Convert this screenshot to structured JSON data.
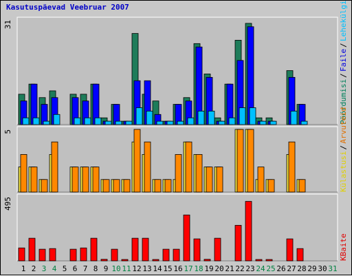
{
  "chart_data": {
    "type": "bar",
    "title": "Kasutuspäevad Veebruar 2007",
    "categories": [
      "1",
      "2",
      "3",
      "4",
      "5",
      "6",
      "7",
      "8",
      "9",
      "10",
      "11",
      "12",
      "13",
      "14",
      "15",
      "16",
      "17",
      "18",
      "19",
      "20",
      "21",
      "22",
      "23",
      "24",
      "25",
      "26",
      "27",
      "28",
      "29",
      "30",
      "31"
    ],
    "weekend_days": [
      "3",
      "4",
      "10",
      "11",
      "17",
      "18",
      "24",
      "25",
      "31"
    ],
    "panels": [
      {
        "id": "top",
        "axis_max_label": "31",
        "ymax": 31,
        "legend": [
          {
            "label": "Pöördumisi",
            "color": "#00805a"
          },
          {
            "label": "Faile",
            "color": "#0000e0"
          },
          {
            "label": "Lehekülgi",
            "color": "#00c0ff"
          }
        ],
        "series": [
          {
            "name": "Pöördumisi",
            "color": "#1e7c5a",
            "values": [
              9,
              12,
              8,
              10,
              0,
              9,
              9,
              12,
              2,
              6,
              1,
              27,
              9,
              7,
              1,
              6,
              8,
              24,
              15,
              2,
              12,
              25,
              30,
              2,
              2,
              0,
              16,
              6,
              0,
              0,
              0
            ]
          },
          {
            "name": "Faile",
            "color": "#0000ff",
            "values": [
              7,
              12,
              6,
              8,
              0,
              8,
              7,
              12,
              1,
              6,
              1,
              13,
              13,
              3,
              1,
              6,
              7,
              23,
              14,
              1,
              12,
              19,
              29,
              1,
              1,
              0,
              14,
              6,
              0,
              0,
              0
            ]
          },
          {
            "name": "Lehekülgi",
            "color": "#00c0ff",
            "values": [
              2,
              2,
              1,
              3,
              0,
              2,
              2,
              2,
              1,
              1,
              1,
              5,
              4,
              1,
              1,
              1,
              2,
              4,
              4,
              1,
              2,
              5,
              5,
              1,
              1,
              0,
              4,
              1,
              0,
              0,
              0
            ]
          }
        ]
      },
      {
        "id": "middle",
        "axis_max_label": "5",
        "ymax": 5,
        "legend": [
          {
            "label": "Külastusi",
            "color": "#e0d000"
          },
          {
            "label": "Arvuteid",
            "color": "#e07000"
          }
        ],
        "series": [
          {
            "name": "Külastusi",
            "color": "#f0e040",
            "values": [
              2,
              2,
              1,
              3,
              0,
              2,
              2,
              2,
              1,
              1,
              1,
              4,
              3,
              1,
              1,
              1,
              4,
              3,
              2,
              2,
              0,
              5,
              5,
              1,
              1,
              0,
              3,
              1,
              0,
              0,
              0
            ]
          },
          {
            "name": "Arvuteid",
            "color": "#ff8800",
            "values": [
              3,
              2,
              1,
              4,
              0,
              2,
              2,
              2,
              1,
              1,
              1,
              5,
              4,
              1,
              1,
              3,
              4,
              3,
              2,
              2,
              0,
              5,
              5,
              2,
              1,
              0,
              4,
              1,
              0,
              0,
              0
            ]
          }
        ]
      },
      {
        "id": "bottom",
        "axis_max_label": "495",
        "ymax": 495,
        "legend": [
          {
            "label": "KBaite",
            "color": "#e00000"
          }
        ],
        "series": [
          {
            "name": "KBaite",
            "color": "#ff0000",
            "values": [
              100,
              175,
              90,
              95,
              0,
              90,
              100,
              175,
              12,
              90,
              10,
              175,
              175,
              10,
              90,
              90,
              355,
              170,
              12,
              175,
              0,
              275,
              460,
              10,
              10,
              0,
              170,
              95,
              0,
              0,
              0
            ]
          }
        ]
      }
    ]
  }
}
